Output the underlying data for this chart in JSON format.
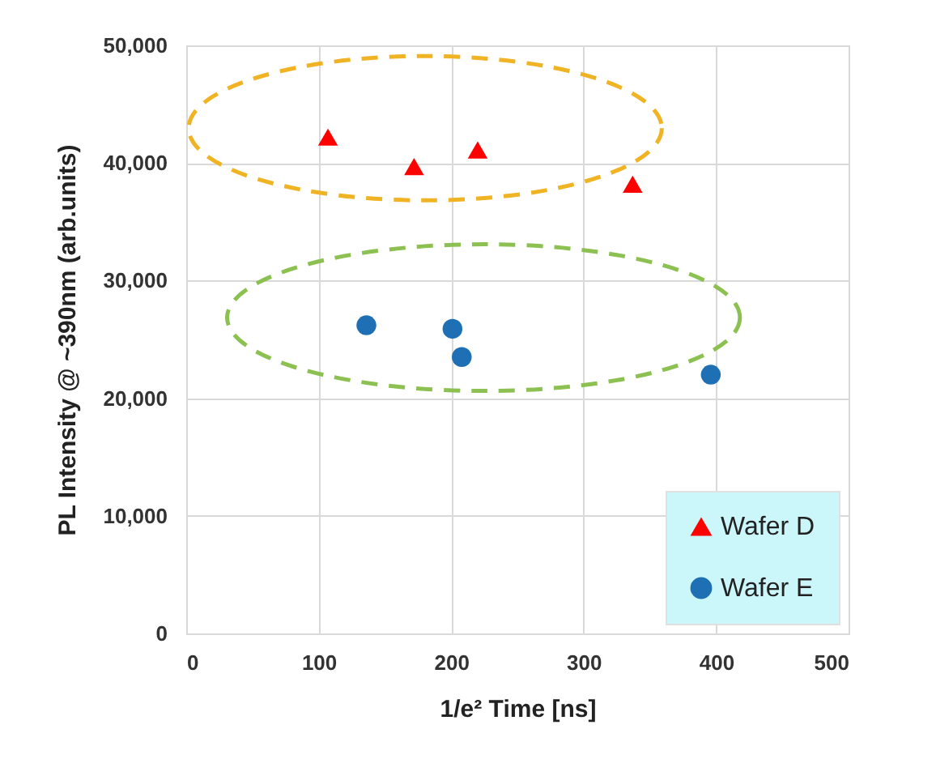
{
  "chart_data": {
    "type": "scatter",
    "xlabel": "1/e² Time [ns]",
    "ylabel": "PL Intensity @ ~390nm (arb.units)",
    "xlim": [
      0,
      500
    ],
    "xticks": [
      0,
      100,
      200,
      300,
      400,
      500
    ],
    "ylim": [
      0,
      50000
    ],
    "yticks": [
      {
        "value": 0,
        "label": "0"
      },
      {
        "value": 10000,
        "label": "10,000"
      },
      {
        "value": 20000,
        "label": "20,000"
      },
      {
        "value": 30000,
        "label": "30,000"
      },
      {
        "value": 40000,
        "label": "40,000"
      },
      {
        "value": 50000,
        "label": "50,000"
      }
    ],
    "grid": true,
    "legend": "bottom right",
    "series": [
      {
        "name": "Wafer D",
        "color": "#ff0000",
        "marker": "triangle",
        "x": [
          107,
          172,
          220,
          337
        ],
        "values": [
          42200,
          39700,
          41100,
          38200
        ]
      },
      {
        "name": "Wafer E",
        "color": "#1f6fb4",
        "marker": "circle",
        "x": [
          136,
          201,
          208,
          396
        ],
        "values": [
          26200,
          25900,
          23500,
          22000
        ]
      }
    ]
  }
}
